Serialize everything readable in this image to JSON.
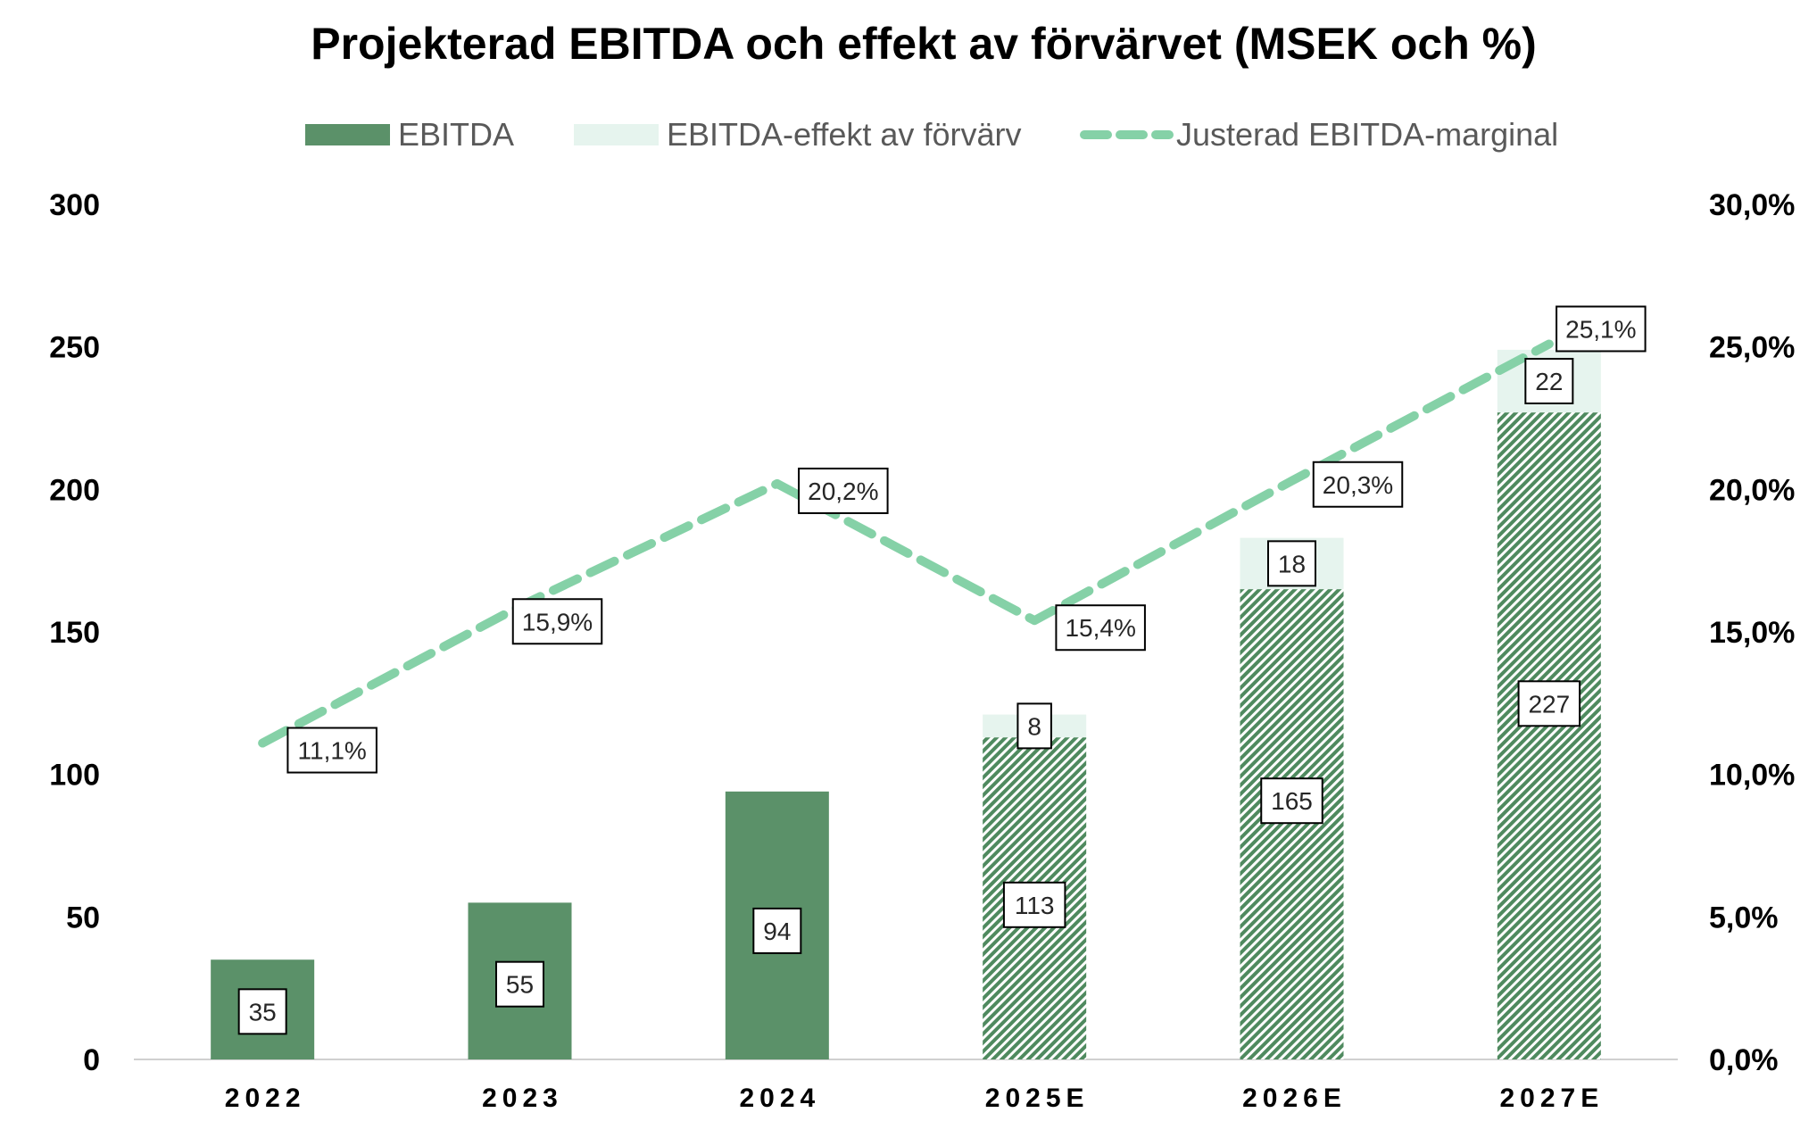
{
  "chart_data": {
    "type": "bar",
    "title": "Projekterad EBITDA och effekt av förvärvet (MSEK och %)",
    "categories": [
      "2022",
      "2023",
      "2024",
      "2025E",
      "2026E",
      "2027E"
    ],
    "series": [
      {
        "name": "EBITDA",
        "kind": "stacked-bar",
        "values": [
          35,
          55,
          94,
          113,
          165,
          227
        ],
        "labels": [
          "35",
          "55",
          "94",
          "113",
          "165",
          "227"
        ],
        "color": "#5b9169",
        "hatched_from_index": 3
      },
      {
        "name": "EBITDA-effekt av förvärv",
        "kind": "stacked-bar",
        "values": [
          null,
          null,
          null,
          8,
          18,
          22
        ],
        "labels": [
          "",
          "",
          "",
          "8",
          "18",
          "22"
        ],
        "color": "#e6f4ee"
      },
      {
        "name": "Justerad EBITDA-marginal",
        "kind": "line",
        "axis": "right",
        "line_style": "dashed",
        "values": [
          11.1,
          15.9,
          20.2,
          15.4,
          20.3,
          25.1
        ],
        "labels": [
          "11,1%",
          "15,9%",
          "20,2%",
          "15,4%",
          "20,3%",
          "25,1%"
        ],
        "color": "#85d1a7"
      }
    ],
    "left_axis": {
      "ylim": [
        0,
        300
      ],
      "ticks": [
        "0",
        "50",
        "100",
        "150",
        "200",
        "250",
        "300"
      ]
    },
    "right_axis": {
      "ylim": [
        0,
        30
      ],
      "ticks": [
        "0,0%",
        "5,0%",
        "10,0%",
        "15,0%",
        "20,0%",
        "25,0%",
        "30,0%"
      ]
    },
    "legend_position": "top",
    "grid": false
  }
}
